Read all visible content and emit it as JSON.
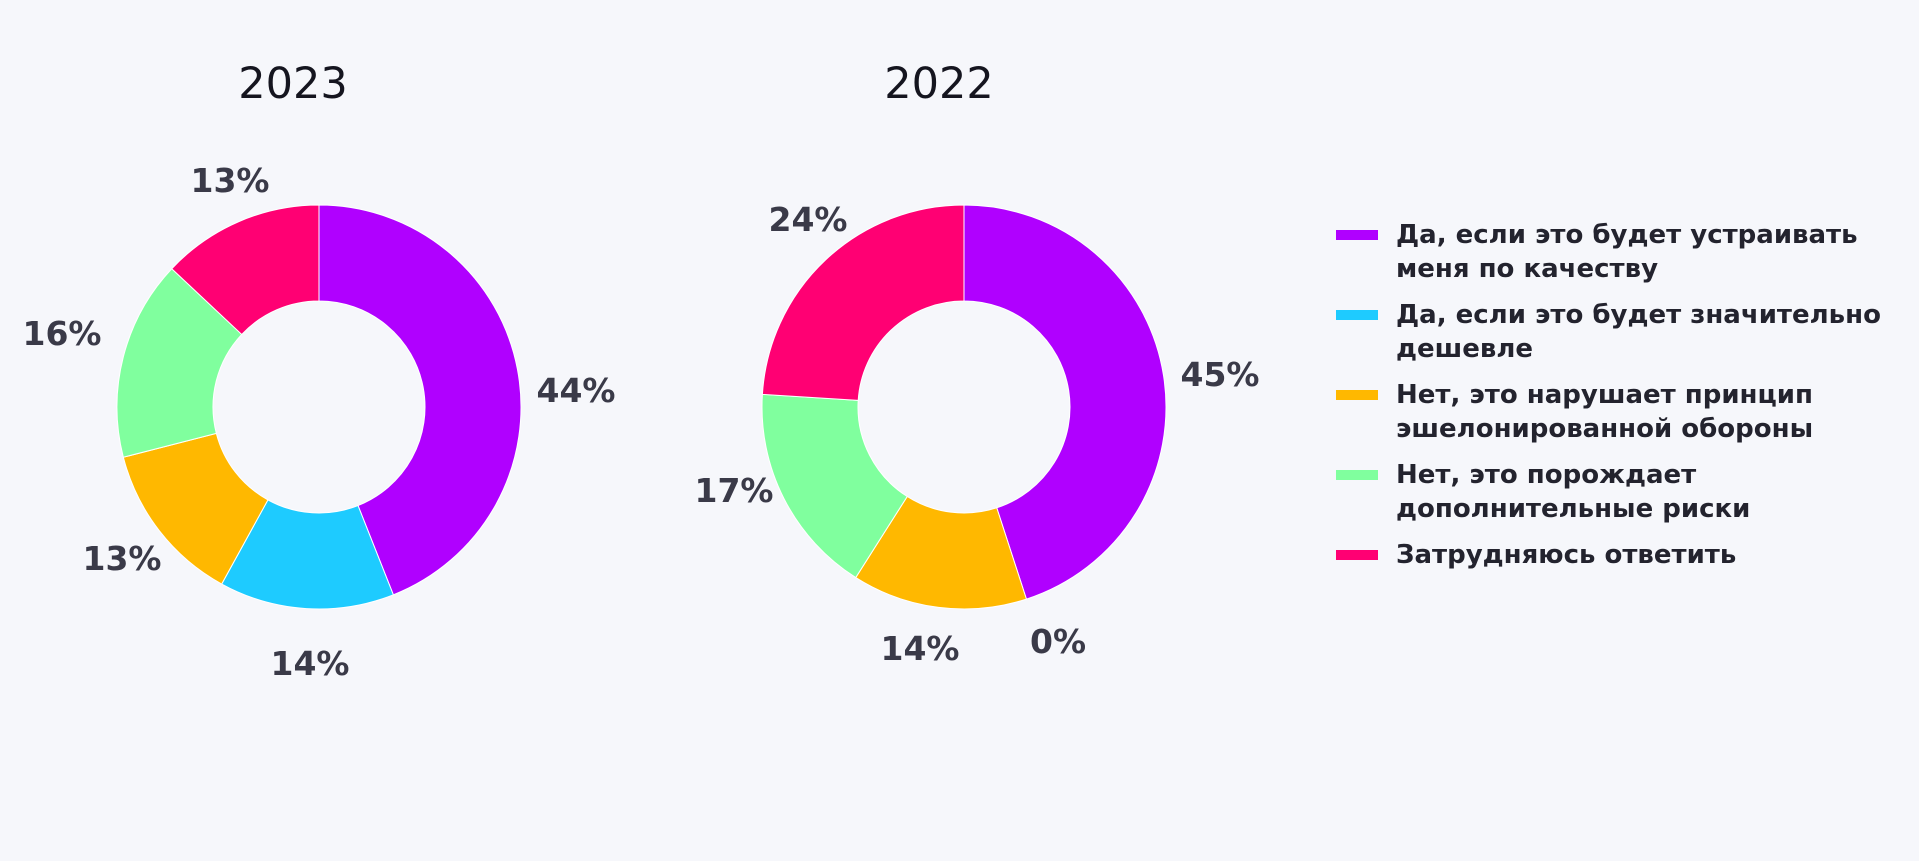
{
  "colors": {
    "background": "#f6f7fb",
    "text": "#3a3a48"
  },
  "chart_data": [
    {
      "type": "pie",
      "title": "2023",
      "donut": true,
      "categories": [
        "Да, если это будет устраивать меня по качеству",
        "Да, если это будет значительно дешевле",
        "Нет, это нарушает принцип эшелонированной обороны",
        "Нет, это порождает дополнительные риски",
        "Затрудняюсь ответить"
      ],
      "values": [
        44,
        14,
        13,
        16,
        13
      ],
      "labels": [
        "44%",
        "14%",
        "13%",
        "16%",
        "13%"
      ],
      "colors": [
        "#b000ff",
        "#1ecbff",
        "#ffb800",
        "#80ff9e",
        "#ff0073"
      ]
    },
    {
      "type": "pie",
      "title": "2022",
      "donut": true,
      "categories": [
        "Да, если это будет устраивать меня по качеству",
        "Да, если это будет значительно дешевле",
        "Нет, это нарушает принцип эшелонированной обороны",
        "Нет, это порождает дополнительные риски",
        "Затрудняюсь ответить"
      ],
      "values": [
        45,
        0,
        14,
        17,
        24
      ],
      "labels": [
        "45%",
        "0%",
        "14%",
        "17%",
        "24%"
      ],
      "colors": [
        "#b000ff",
        "#1ecbff",
        "#ffb800",
        "#80ff9e",
        "#ff0073"
      ]
    }
  ],
  "legend": {
    "placement": "right",
    "items": [
      {
        "label": "Да, если это будет устраивать меня по качеству",
        "color": "#b000ff"
      },
      {
        "label": "Да, если это будет значительно дешевле",
        "color": "#1ecbff"
      },
      {
        "label": "Нет, это нарушает принцип эшелонированной обороны",
        "color": "#ffb800"
      },
      {
        "label": "Нет, это порождает дополнительные риски",
        "color": "#80ff9e"
      },
      {
        "label": "Затрудняюсь ответить",
        "color": "#ff0073"
      }
    ]
  }
}
